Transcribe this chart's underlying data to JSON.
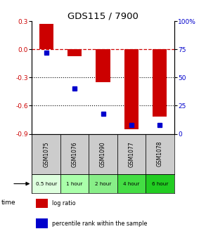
{
  "title": "GDS115 / 7900",
  "samples": [
    "GSM1075",
    "GSM1076",
    "GSM1090",
    "GSM1077",
    "GSM1078"
  ],
  "time_labels": [
    "0.5 hour",
    "1 hour",
    "2 hour",
    "4 hour",
    "6 hour"
  ],
  "time_bg_colors": [
    "#ddffdd",
    "#aaffaa",
    "#88ee88",
    "#44dd44",
    "#22cc22"
  ],
  "log_ratios": [
    0.27,
    -0.07,
    -0.35,
    -0.85,
    -0.72
  ],
  "percentile_ranks": [
    72,
    40,
    18,
    8,
    8
  ],
  "bar_color": "#cc0000",
  "dot_color": "#0000cc",
  "ylim_left": [
    -0.9,
    0.3
  ],
  "ylim_right": [
    0,
    100
  ],
  "yticks_left": [
    -0.9,
    -0.6,
    -0.3,
    0.0,
    0.3
  ],
  "yticks_right": [
    0,
    25,
    50,
    75,
    100
  ],
  "dotted_lines": [
    -0.3,
    -0.6
  ],
  "bar_width": 0.5,
  "background_color": "#ffffff",
  "sample_bg_color": "#cccccc",
  "legend_items": [
    {
      "color": "#cc0000",
      "label": "log ratio"
    },
    {
      "color": "#0000cc",
      "label": "percentile rank within the sample"
    }
  ]
}
